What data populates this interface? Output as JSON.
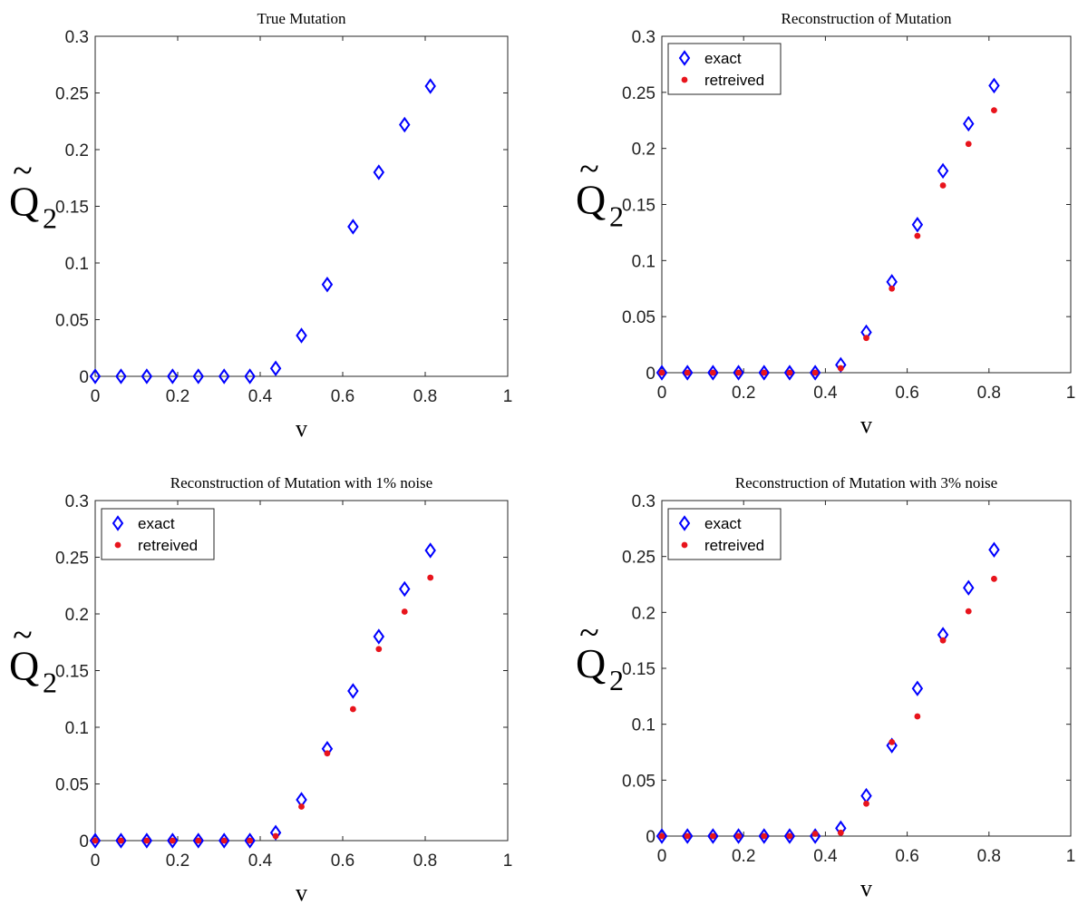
{
  "chart_data": [
    {
      "type": "scatter",
      "title": "True Mutation",
      "xlabel": "v",
      "ylabel": {
        "symbol": "Q",
        "accent": "~",
        "subscript": "2"
      },
      "xlim": [
        0,
        1
      ],
      "ylim": [
        0,
        0.3
      ],
      "xticks": [
        "0",
        "0.2",
        "0.4",
        "0.6",
        "0.8",
        "1"
      ],
      "yticks": [
        "0",
        "0.05",
        "0.1",
        "0.15",
        "0.2",
        "0.25",
        "0.3"
      ],
      "grid": false,
      "legend": null,
      "x": [
        0,
        0.0625,
        0.125,
        0.1875,
        0.25,
        0.3125,
        0.375,
        0.4375,
        0.5,
        0.5625,
        0.625,
        0.6875,
        0.75,
        0.8125
      ],
      "series": [
        {
          "marker": "diamond",
          "color": "#0000ff",
          "values": [
            0,
            0,
            0,
            0,
            0,
            0,
            0,
            0.007,
            0.036,
            0.081,
            0.132,
            0.18,
            0.222,
            0.256
          ]
        }
      ]
    },
    {
      "type": "scatter",
      "title": "Reconstruction of Mutation",
      "xlabel": "v",
      "ylabel": {
        "symbol": "Q",
        "accent": "~",
        "subscript": "2"
      },
      "xlim": [
        0,
        1
      ],
      "ylim": [
        0,
        0.3
      ],
      "xticks": [
        "0",
        "0.2",
        "0.4",
        "0.6",
        "0.8",
        "1"
      ],
      "yticks": [
        "0",
        "0.05",
        "0.1",
        "0.15",
        "0.2",
        "0.25",
        "0.3"
      ],
      "grid": false,
      "legend": "top-left",
      "x": [
        0,
        0.0625,
        0.125,
        0.1875,
        0.25,
        0.3125,
        0.375,
        0.4375,
        0.5,
        0.5625,
        0.625,
        0.6875,
        0.75,
        0.8125
      ],
      "series": [
        {
          "name": "exact",
          "marker": "diamond",
          "color": "#0000ff",
          "values": [
            0,
            0,
            0,
            0,
            0,
            0,
            0,
            0.007,
            0.036,
            0.081,
            0.132,
            0.18,
            0.222,
            0.256
          ]
        },
        {
          "name": "retreived",
          "marker": "dot",
          "color": "#e8141c",
          "values": [
            0,
            0,
            0,
            0,
            0,
            0,
            0,
            0.004,
            0.031,
            0.075,
            0.122,
            0.167,
            0.204,
            0.234
          ]
        }
      ]
    },
    {
      "type": "scatter",
      "title": "Reconstruction of Mutation with 1% noise",
      "xlabel": "v",
      "ylabel": {
        "symbol": "Q",
        "accent": "~",
        "subscript": "2"
      },
      "xlim": [
        0,
        1
      ],
      "ylim": [
        0,
        0.3
      ],
      "xticks": [
        "0",
        "0.2",
        "0.4",
        "0.6",
        "0.8",
        "1"
      ],
      "yticks": [
        "0",
        "0.05",
        "0.1",
        "0.15",
        "0.2",
        "0.25",
        "0.3"
      ],
      "grid": false,
      "legend": "top-left",
      "x": [
        0,
        0.0625,
        0.125,
        0.1875,
        0.25,
        0.3125,
        0.375,
        0.4375,
        0.5,
        0.5625,
        0.625,
        0.6875,
        0.75,
        0.8125
      ],
      "series": [
        {
          "name": "exact",
          "marker": "diamond",
          "color": "#0000ff",
          "values": [
            0,
            0,
            0,
            0,
            0,
            0,
            0,
            0.007,
            0.036,
            0.081,
            0.132,
            0.18,
            0.222,
            0.256
          ]
        },
        {
          "name": "retreived",
          "marker": "dot",
          "color": "#e8141c",
          "values": [
            0,
            0,
            0,
            0,
            0,
            0,
            0,
            0.004,
            0.03,
            0.077,
            0.116,
            0.169,
            0.202,
            0.232
          ]
        }
      ]
    },
    {
      "type": "scatter",
      "title": "Reconstruction of Mutation with 3% noise",
      "xlabel": "v",
      "ylabel": {
        "symbol": "Q",
        "accent": "~",
        "subscript": "2"
      },
      "xlim": [
        0,
        1
      ],
      "ylim": [
        0,
        0.3
      ],
      "xticks": [
        "0",
        "0.2",
        "0.4",
        "0.6",
        "0.8",
        "1"
      ],
      "yticks": [
        "0",
        "0.05",
        "0.1",
        "0.15",
        "0.2",
        "0.25",
        "0.3"
      ],
      "grid": false,
      "legend": "top-left",
      "x": [
        0,
        0.0625,
        0.125,
        0.1875,
        0.25,
        0.3125,
        0.375,
        0.4375,
        0.5,
        0.5625,
        0.625,
        0.6875,
        0.75,
        0.8125
      ],
      "series": [
        {
          "name": "exact",
          "marker": "diamond",
          "color": "#0000ff",
          "values": [
            0,
            0,
            0,
            0,
            0,
            0,
            0,
            0.007,
            0.036,
            0.081,
            0.132,
            0.18,
            0.222,
            0.256
          ]
        },
        {
          "name": "retreived",
          "marker": "dot",
          "color": "#e8141c",
          "values": [
            0,
            0,
            0,
            0,
            0,
            0,
            0.002,
            0.003,
            0.029,
            0.084,
            0.107,
            0.175,
            0.201,
            0.23
          ]
        }
      ]
    }
  ]
}
